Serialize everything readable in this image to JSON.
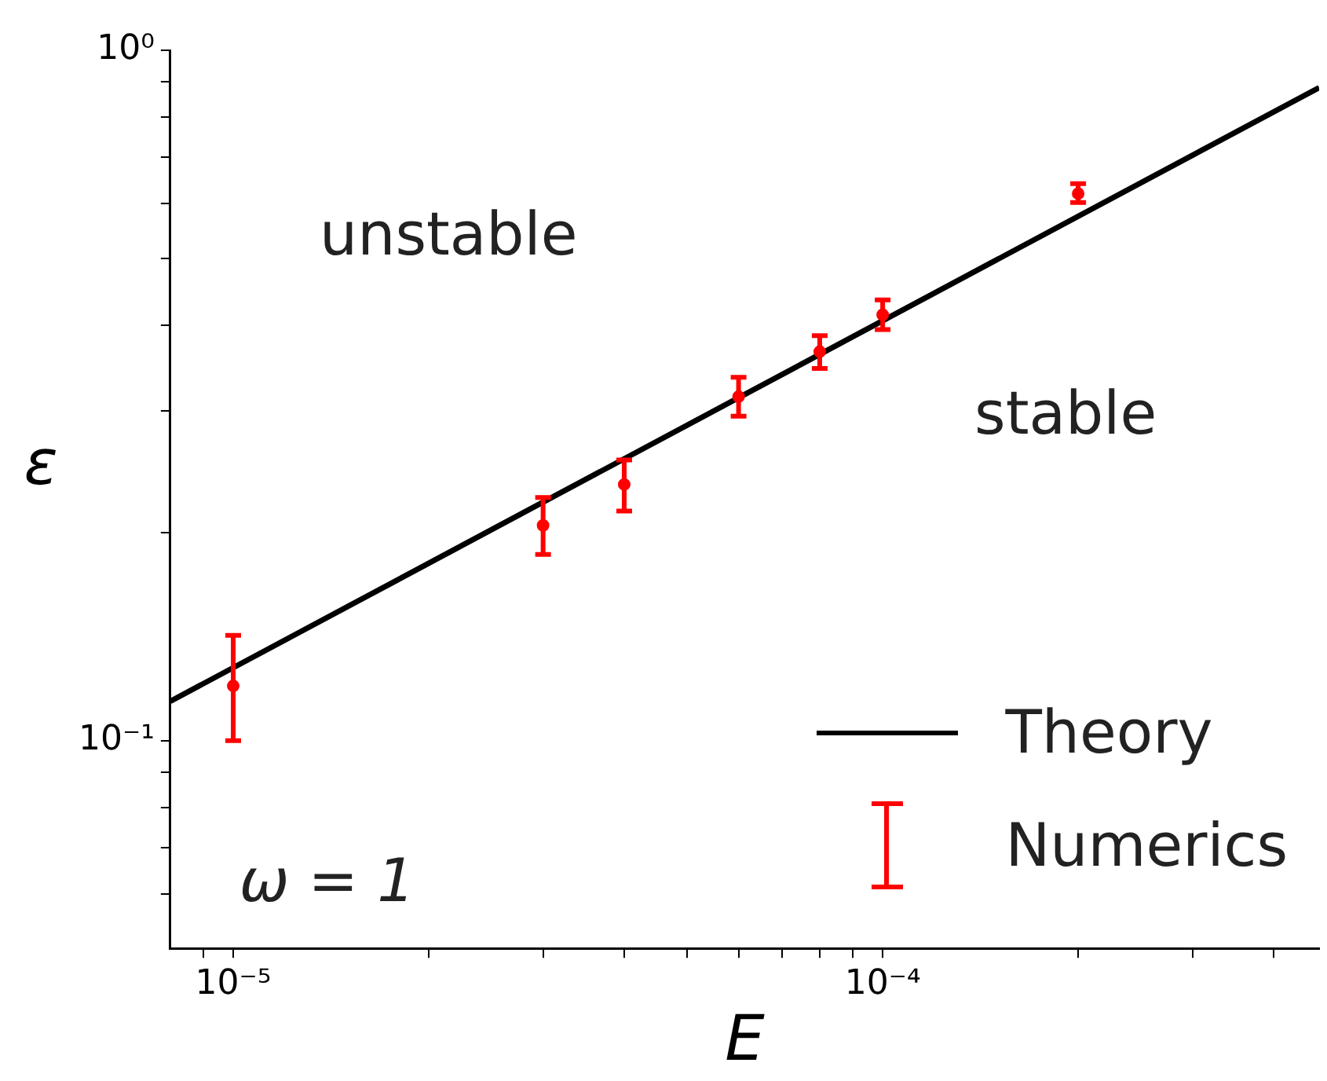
{
  "chart_data": {
    "type": "scatter",
    "xlabel": "E",
    "ylabel": "ε",
    "log": "xy",
    "grid": false,
    "legend": "bottom right",
    "xlim": [
      8e-06,
      0.00047
    ],
    "ylim": [
      0.05,
      1
    ],
    "xticks": [
      {
        "value": 9e-06,
        "label": null
      },
      {
        "value": 1e-05,
        "label": "10⁻⁵"
      },
      {
        "value": 2e-05,
        "label": null
      },
      {
        "value": 3e-05,
        "label": null
      },
      {
        "value": 4e-05,
        "label": null
      },
      {
        "value": 5e-05,
        "label": null
      },
      {
        "value": 6e-05,
        "label": null
      },
      {
        "value": 7e-05,
        "label": null
      },
      {
        "value": 8e-05,
        "label": null
      },
      {
        "value": 9e-05,
        "label": null
      },
      {
        "value": 0.0001,
        "label": "10⁻⁴"
      },
      {
        "value": 0.0002,
        "label": null
      },
      {
        "value": 0.0003,
        "label": null
      },
      {
        "value": 0.0004,
        "label": null
      }
    ],
    "yticks": [
      {
        "value": 0.06,
        "label": null
      },
      {
        "value": 0.07,
        "label": null
      },
      {
        "value": 0.08,
        "label": null
      },
      {
        "value": 0.09,
        "label": null
      },
      {
        "value": 0.1,
        "label": "10⁻¹"
      },
      {
        "value": 0.2,
        "label": null
      },
      {
        "value": 0.3,
        "label": null
      },
      {
        "value": 0.4,
        "label": null
      },
      {
        "value": 0.5,
        "label": null
      },
      {
        "value": 0.6,
        "label": null
      },
      {
        "value": 0.7,
        "label": null
      },
      {
        "value": 0.8,
        "label": null
      },
      {
        "value": 0.9,
        "label": null
      },
      {
        "value": 1,
        "label": "10⁰"
      }
    ],
    "series": [
      {
        "name": "Theory",
        "type": "line",
        "marker": "none",
        "color": "#000000",
        "x": [
          8e-06,
          0.00047
        ],
        "values": [
          0.114,
          0.883
        ]
      },
      {
        "name": "Numerics",
        "marker": "circle",
        "color": "#ff0000",
        "x": [
          1e-05,
          3e-05,
          4e-05,
          6e-05,
          8e-05,
          0.0001,
          0.0002
        ],
        "values": [
          0.12,
          0.205,
          0.235,
          0.315,
          0.366,
          0.414,
          0.62
        ],
        "errors": [
          [
            0.1,
            0.142
          ],
          [
            0.186,
            0.225
          ],
          [
            0.215,
            0.255
          ],
          [
            0.295,
            0.336
          ],
          [
            0.346,
            0.386
          ],
          [
            0.394,
            0.435
          ],
          [
            0.602,
            0.641
          ]
        ]
      }
    ],
    "annotations": [
      "unstable",
      "stable",
      "ω = 1"
    ]
  }
}
